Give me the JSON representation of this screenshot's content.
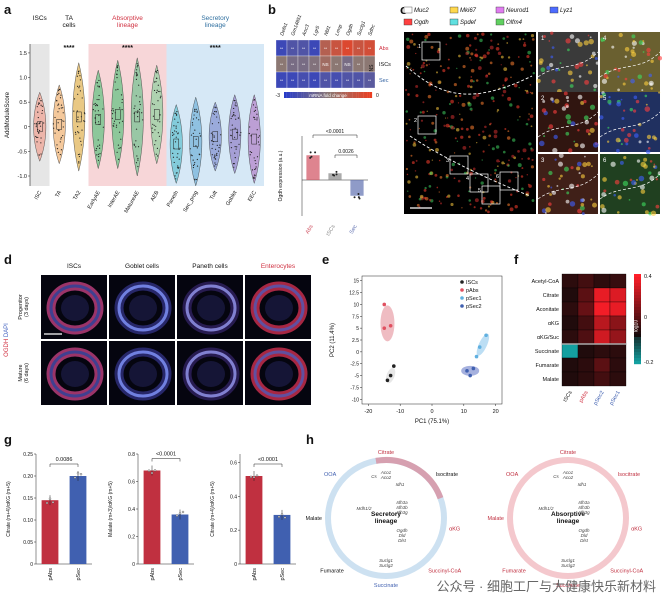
{
  "panel_labels": {
    "a": "a",
    "b": "b",
    "c": "c",
    "d": "d",
    "e": "e",
    "f": "f",
    "g": "g",
    "h": "h"
  },
  "panel_a": {
    "ylabel": "AddModuleScore",
    "yticks": [
      "-1.0",
      "-0.5",
      "0",
      "0.5",
      "1.0",
      "1.5"
    ],
    "groups": [
      {
        "label": "ISCs"
      },
      {
        "label": "TA\ncells"
      },
      {
        "label": "Absorptive\nlineage"
      },
      {
        "label": "Secretory\nlineage"
      }
    ],
    "sig": [
      "****",
      "****",
      "****"
    ],
    "categories": [
      "ISC",
      "TA",
      "TA2",
      "EarlyAE",
      "InterAE",
      "MatureAE",
      "AEB",
      "Paneth",
      "Sec_prog",
      "Tuft",
      "Goblet",
      "EEC"
    ],
    "colors": {
      "gray": "#e6e6e6",
      "abs_bg": "#f7d6d8",
      "sec_bg": "#d6e8f6",
      "abs": "#f08080",
      "sec": "#7fb8d8"
    }
  },
  "panel_b": {
    "genes": [
      "Defa1",
      "Gm14851",
      "Aoc3",
      "Lgr5",
      "Nbl1",
      "Lrmp",
      "Ogdh",
      "Suclg1",
      "Sdhc"
    ],
    "rows": [
      "Abs",
      "ISCs",
      "Sec"
    ],
    "ns_label": "NS",
    "colorbar": {
      "min": "-3",
      "label": "mRNA fold change",
      "max": "0"
    },
    "bar": {
      "ylabel": "Ogdh expression (a.u.)",
      "categories": [
        "Abs",
        "ISCs",
        "Sec"
      ],
      "values": [
        0.55,
        0.15,
        -0.35
      ],
      "p_values": [
        "<0.0001",
        "0.0026"
      ]
    }
  },
  "panel_c": {
    "legend": [
      {
        "label": "Muc2",
        "color": "#ffffff"
      },
      {
        "label": "Mki67",
        "color": "#ffd84d"
      },
      {
        "label": "Neurod1",
        "color": "#e07cf0"
      },
      {
        "label": "Lyz1",
        "color": "#4d6bff"
      },
      {
        "label": "Ogdh",
        "color": "#ff4040"
      },
      {
        "label": "Spdef",
        "color": "#60e0e0"
      },
      {
        "label": "Olfm4",
        "color": "#60d060"
      }
    ],
    "insets": [
      "1",
      "2",
      "3",
      "4",
      "5",
      "6"
    ]
  },
  "panel_d": {
    "columns": [
      "ISCs",
      "Goblet cells",
      "Paneth cells",
      "Enterocytes"
    ],
    "rows": [
      "Progenitor\n(3 days)",
      "Mature\n(6 days)"
    ],
    "stain": [
      "OGDH",
      "DAPI"
    ]
  },
  "panel_e": {
    "xlabel": "PC1 (75.1%)",
    "ylabel": "PC2 (11.4%)",
    "xticks": [
      "-20",
      "-10",
      "0",
      "10",
      "20"
    ],
    "yticks": [
      "-10",
      "-7.5",
      "-5",
      "-2.5",
      "0",
      "2.5",
      "5",
      "7.5",
      "10",
      "12.5",
      "15"
    ],
    "legend": [
      {
        "label": "ISCs",
        "color": "#222222"
      },
      {
        "label": "pAbs",
        "color": "#e05060"
      },
      {
        "label": "pSec1",
        "color": "#60b0e0"
      },
      {
        "label": "pSec2",
        "color": "#4060b0"
      }
    ]
  },
  "panel_f": {
    "rows": [
      "Acetyl-CoA",
      "Citrate",
      "Aconitate",
      "αKG",
      "αKG/Suc",
      "Succinate",
      "Fumarate",
      "Malate"
    ],
    "columns": [
      "ISCs",
      "pAbs",
      "pSec2",
      "pSec1"
    ],
    "colorbar": {
      "max": "0.4",
      "mid": "0",
      "min": "-0.2",
      "label": "log10"
    }
  },
  "panel_g": {
    "plots": [
      {
        "ylabel": "Citrate (m+4)/αKG (m+5)",
        "categories": [
          "pAbs",
          "pSec"
        ],
        "values": [
          0.145,
          0.2
        ],
        "p": "0.0086",
        "yticks": [
          "0",
          "0.05",
          "0.10",
          "0.15",
          "0.20",
          "0.25"
        ],
        "ymax": 0.25
      },
      {
        "ylabel": "Malate (m+3)/αKG (m+5)",
        "categories": [
          "pAbs",
          "pSec"
        ],
        "values": [
          0.68,
          0.36
        ],
        "p": "<0.0001",
        "yticks": [
          "0",
          "0.2",
          "0.4",
          "0.6",
          "0.8"
        ],
        "ymax": 0.8
      },
      {
        "ylabel": "Citrate (m+4)/αKG (m+5)",
        "categories": [
          "pAbs",
          "pSec"
        ],
        "values": [
          0.52,
          0.29
        ],
        "p": "<0.0001",
        "yticks": [
          "0",
          "0.2",
          "0.4",
          "0.6"
        ],
        "ymax": 0.65
      }
    ]
  },
  "panel_h": {
    "left_title": "Secretory\nlineage",
    "right_title": "Absorptive\nlineage",
    "nodes": [
      "Citrate",
      "Isocitrate",
      "αKG",
      "Succinyl-CoA",
      "Succinate",
      "Fumarate",
      "Malate",
      "OOA"
    ],
    "genes_left": [
      "Aco1",
      "Aco2",
      "Idh1",
      "Idh3a",
      "Idh3b",
      "Idh3g",
      "Ogdh",
      "Dld",
      "Dlst",
      "Suclg1",
      "Suclg2",
      "Mdh1/2",
      "Cs"
    ],
    "genes_right": [
      "Aco1",
      "Aco2",
      "Idh1",
      "Idh3a",
      "Idh3b",
      "Idh3g",
      "Ogdh",
      "Dld",
      "Dlst",
      "Suclg1",
      "Suclg2",
      "Mdh1/2",
      "Cs"
    ]
  },
  "watermark": "公众号 · 细胞工厂与大健康快乐新材料"
}
